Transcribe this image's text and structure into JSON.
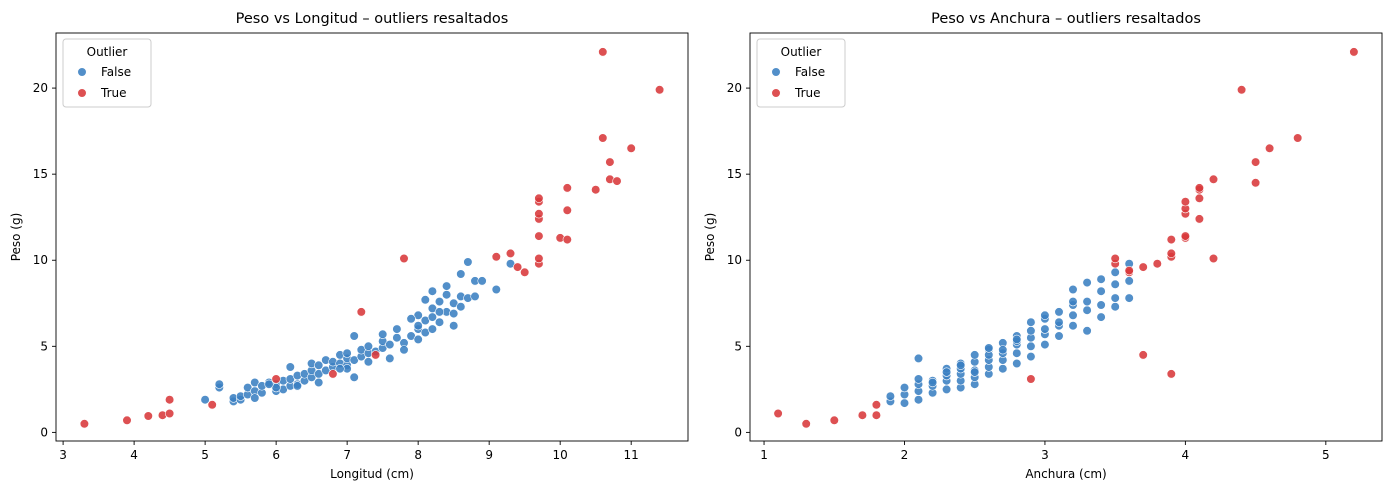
{
  "colors": {
    "False": "#3a7fc1",
    "True": "#d8383a"
  },
  "chart_data": [
    {
      "type": "scatter",
      "title": "Peso vs Longitud – outliers resaltados",
      "xlabel": "Longitud (cm)",
      "ylabel": "Peso (g)",
      "xlim": [
        2.9,
        11.8
      ],
      "ylim": [
        -0.5,
        23.2
      ],
      "xticks": [
        3,
        4,
        5,
        6,
        7,
        8,
        9,
        10,
        11
      ],
      "yticks": [
        0,
        5,
        10,
        15,
        20
      ],
      "grid": false,
      "legend": {
        "title": "Outlier",
        "position": "top-left",
        "entries": [
          "False",
          "True"
        ]
      },
      "series": [
        {
          "name": "False",
          "x": [
            5.0,
            5.2,
            5.2,
            5.4,
            5.4,
            5.5,
            5.5,
            5.6,
            5.6,
            5.7,
            5.7,
            5.8,
            5.8,
            5.9,
            6.0,
            6.0,
            6.1,
            6.1,
            6.2,
            6.2,
            6.2,
            6.3,
            6.3,
            6.4,
            6.4,
            6.5,
            6.5,
            6.5,
            6.6,
            6.6,
            6.7,
            6.7,
            6.8,
            6.8,
            6.9,
            6.9,
            7.0,
            7.0,
            7.0,
            7.1,
            7.1,
            7.2,
            7.2,
            7.3,
            7.3,
            7.4,
            7.5,
            7.5,
            7.5,
            7.6,
            7.7,
            7.7,
            7.8,
            7.9,
            8.0,
            8.0,
            8.0,
            8.1,
            8.1,
            8.1,
            8.2,
            8.2,
            8.2,
            8.3,
            8.3,
            8.4,
            8.4,
            8.5,
            8.5,
            8.6,
            8.6,
            8.7,
            8.7,
            8.8,
            8.8,
            8.9,
            9.1,
            9.3,
            7.8,
            7.9,
            8.0,
            6.0,
            6.3,
            6.6,
            7.0,
            7.3,
            7.6,
            8.3,
            8.5,
            7.1,
            5.7,
            6.9,
            8.2,
            8.4,
            8.6,
            5.9
          ],
          "y": [
            1.9,
            2.6,
            2.8,
            1.8,
            2.0,
            1.9,
            2.1,
            2.2,
            2.6,
            2.4,
            2.9,
            2.3,
            2.7,
            2.9,
            2.4,
            2.8,
            2.5,
            3.0,
            2.7,
            3.1,
            3.8,
            2.8,
            3.3,
            3.0,
            3.4,
            3.2,
            3.6,
            4.0,
            3.4,
            3.9,
            3.6,
            4.2,
            3.8,
            4.1,
            4.0,
            4.5,
            3.9,
            4.3,
            4.6,
            4.2,
            5.6,
            4.4,
            4.8,
            4.6,
            5.0,
            4.7,
            4.9,
            5.3,
            5.7,
            5.1,
            5.5,
            6.0,
            5.2,
            5.6,
            5.4,
            6.0,
            6.8,
            5.8,
            6.5,
            7.7,
            6.0,
            7.2,
            8.2,
            6.4,
            7.6,
            7.0,
            8.0,
            6.9,
            7.5,
            7.3,
            7.9,
            7.8,
            9.9,
            7.9,
            8.8,
            8.8,
            8.3,
            9.8,
            4.8,
            6.6,
            6.2,
            2.6,
            2.7,
            2.9,
            3.7,
            4.1,
            4.3,
            7.0,
            6.2,
            3.2,
            2.0,
            3.7,
            6.7,
            8.5,
            9.2,
            2.8
          ]
        },
        {
          "name": "True",
          "x": [
            3.3,
            3.9,
            4.2,
            4.4,
            4.5,
            4.5,
            5.1,
            6.0,
            6.8,
            7.2,
            7.4,
            7.8,
            9.1,
            9.3,
            9.4,
            9.5,
            9.7,
            9.7,
            9.7,
            9.7,
            9.7,
            9.7,
            9.7,
            10.0,
            10.1,
            10.1,
            10.1,
            10.5,
            10.6,
            10.6,
            10.7,
            10.7,
            10.8,
            11.0,
            11.4
          ],
          "y": [
            0.5,
            0.7,
            0.95,
            1.0,
            1.1,
            1.9,
            1.6,
            3.1,
            3.4,
            7.0,
            4.5,
            10.1,
            10.2,
            10.4,
            9.6,
            9.3,
            9.8,
            10.1,
            11.4,
            12.4,
            12.7,
            13.4,
            13.6,
            11.3,
            11.2,
            12.9,
            14.2,
            14.1,
            17.1,
            22.1,
            14.7,
            15.7,
            14.6,
            16.5,
            19.9
          ]
        }
      ]
    },
    {
      "type": "scatter",
      "title": "Peso vs Anchura – outliers resaltados",
      "xlabel": "Anchura (cm)",
      "ylabel": "Peso (g)",
      "xlim": [
        0.9,
        5.4
      ],
      "ylim": [
        -0.5,
        23.2
      ],
      "xticks": [
        1,
        2,
        3,
        4,
        5
      ],
      "yticks": [
        0,
        5,
        10,
        15,
        20
      ],
      "grid": false,
      "legend": {
        "title": "Outlier",
        "position": "top-left",
        "entries": [
          "False",
          "True"
        ]
      },
      "series": [
        {
          "name": "False",
          "x": [
            1.9,
            1.9,
            2.0,
            2.0,
            2.0,
            2.1,
            2.1,
            2.1,
            2.1,
            2.2,
            2.2,
            2.2,
            2.3,
            2.3,
            2.3,
            2.3,
            2.4,
            2.4,
            2.4,
            2.4,
            2.4,
            2.5,
            2.5,
            2.5,
            2.5,
            2.5,
            2.6,
            2.6,
            2.6,
            2.6,
            2.7,
            2.7,
            2.7,
            2.7,
            2.8,
            2.8,
            2.8,
            2.8,
            2.9,
            2.9,
            2.9,
            2.9,
            3.0,
            3.0,
            3.0,
            3.1,
            3.1,
            3.1,
            3.2,
            3.2,
            3.2,
            3.3,
            3.3,
            3.3,
            3.4,
            3.4,
            3.4,
            3.5,
            3.5,
            3.5,
            3.6,
            3.6,
            3.6,
            2.1,
            2.4,
            2.6,
            2.8,
            3.0,
            3.2,
            3.4,
            3.5,
            2.2,
            2.5,
            2.7,
            2.9,
            3.1,
            3.3,
            2.3,
            2.6,
            2.8,
            3.0,
            3.2
          ],
          "y": [
            1.8,
            2.1,
            1.7,
            2.2,
            2.6,
            1.9,
            2.4,
            2.8,
            4.3,
            2.3,
            2.7,
            3.0,
            2.5,
            3.0,
            3.3,
            3.7,
            2.6,
            3.0,
            3.4,
            3.7,
            4.0,
            2.8,
            3.2,
            3.6,
            4.1,
            4.5,
            3.4,
            3.8,
            4.2,
            4.8,
            3.7,
            4.2,
            4.6,
            5.2,
            4.0,
            4.6,
            5.1,
            5.6,
            4.4,
            5.0,
            5.5,
            6.4,
            5.1,
            5.7,
            6.6,
            5.6,
            6.2,
            7.0,
            6.2,
            6.8,
            8.3,
            5.9,
            7.1,
            8.7,
            6.7,
            7.4,
            8.9,
            7.3,
            7.8,
            9.3,
            7.8,
            8.8,
            9.8,
            3.1,
            3.9,
            4.5,
            5.3,
            6.0,
            7.4,
            8.2,
            8.6,
            2.9,
            3.5,
            4.8,
            5.9,
            6.4,
            7.6,
            3.5,
            4.9,
            5.4,
            6.8,
            7.6
          ]
        },
        {
          "name": "True",
          "x": [
            1.1,
            1.3,
            1.5,
            1.7,
            1.8,
            1.8,
            2.9,
            3.5,
            3.5,
            3.6,
            3.6,
            3.7,
            3.7,
            3.8,
            3.9,
            3.9,
            3.9,
            3.9,
            4.0,
            4.0,
            4.0,
            4.0,
            4.0,
            4.1,
            4.1,
            4.1,
            4.1,
            4.2,
            4.2,
            4.4,
            4.5,
            4.5,
            4.6,
            4.8,
            5.2
          ],
          "y": [
            1.1,
            0.5,
            0.7,
            1.0,
            1.0,
            1.6,
            3.1,
            9.8,
            10.1,
            9.3,
            9.4,
            9.6,
            4.5,
            9.8,
            3.4,
            10.2,
            10.4,
            11.2,
            11.3,
            11.4,
            12.7,
            13.0,
            13.4,
            12.4,
            13.6,
            14.1,
            14.2,
            10.1,
            14.7,
            19.9,
            14.5,
            15.7,
            16.5,
            17.1,
            22.1
          ]
        }
      ]
    }
  ]
}
